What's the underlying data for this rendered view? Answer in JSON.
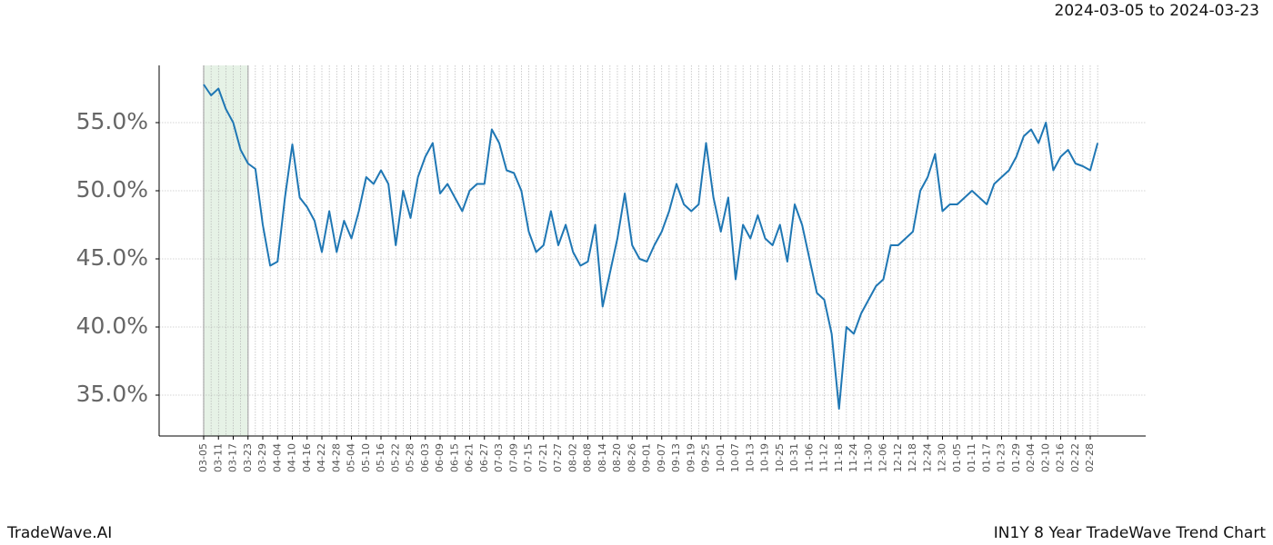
{
  "chart_data": {
    "type": "line",
    "title": "2024-03-05 to 2024-03-23",
    "footer_left": "TradeWave.AI",
    "footer_right": "IN1Y 8 Year TradeWave Trend Chart",
    "categories": [
      "03-05",
      null,
      "03-11",
      null,
      "03-17",
      null,
      "03-23",
      null,
      "03-29",
      null,
      "04-04",
      null,
      "04-10",
      null,
      "04-16",
      null,
      "04-22",
      null,
      "04-28",
      null,
      "05-04",
      null,
      "05-10",
      null,
      "05-16",
      null,
      "05-22",
      null,
      "05-28",
      null,
      "06-03",
      null,
      "06-09",
      null,
      "06-15",
      null,
      "06-21",
      null,
      "06-27",
      null,
      "07-03",
      null,
      "07-09",
      null,
      "07-15",
      null,
      "07-21",
      null,
      "07-27",
      null,
      "08-02",
      null,
      "08-08",
      null,
      "08-14",
      null,
      "08-20",
      null,
      "08-26",
      null,
      "09-01",
      null,
      "09-07",
      null,
      "09-13",
      null,
      "09-19",
      null,
      "09-25",
      null,
      "10-01",
      null,
      "10-07",
      null,
      "10-13",
      null,
      "10-19",
      null,
      "10-25",
      null,
      "10-31",
      null,
      "11-06",
      null,
      "11-12",
      null,
      "11-18",
      null,
      "11-24",
      null,
      "11-30",
      null,
      "12-06",
      null,
      "12-12",
      null,
      "12-18",
      null,
      "12-24",
      null,
      "12-30",
      null,
      "01-05",
      null,
      "01-11",
      null,
      "01-17",
      null,
      "01-23",
      null,
      "01-29",
      null,
      "02-04",
      null,
      "02-10",
      null,
      "02-16",
      null,
      "02-22",
      null,
      "02-28",
      null
    ],
    "series": [
      {
        "name": "IN1Y",
        "color": "#1f77b4",
        "values": [
          57.8,
          57.0,
          57.5,
          56.0,
          55.0,
          53.0,
          52.0,
          51.6,
          47.5,
          44.5,
          44.8,
          49.5,
          53.4,
          49.5,
          48.8,
          47.8,
          45.5,
          48.5,
          45.5,
          47.8,
          46.5,
          48.5,
          51.0,
          50.5,
          51.5,
          50.5,
          46.0,
          50.0,
          48.0,
          51.0,
          52.5,
          53.5,
          49.8,
          50.5,
          49.5,
          48.5,
          50.0,
          50.5,
          50.5,
          54.5,
          53.5,
          51.5,
          51.3,
          50.0,
          47.0,
          45.5,
          46.0,
          48.5,
          46.0,
          47.5,
          45.5,
          44.5,
          44.8,
          47.5,
          41.5,
          44.0,
          46.5,
          49.8,
          46.0,
          45.0,
          44.8,
          46.0,
          47.0,
          48.5,
          50.5,
          49.0,
          48.5,
          49.0,
          53.5,
          49.5,
          47.0,
          49.5,
          43.5,
          47.5,
          46.5,
          48.2,
          46.5,
          46.0,
          47.5,
          44.8,
          49.0,
          47.5,
          45.0,
          42.5,
          42.0,
          39.5,
          34.0,
          40.0,
          39.5,
          41.0,
          42.0,
          43.0,
          43.5,
          46.0,
          46.0,
          46.5,
          47.0,
          50.0,
          51.0,
          52.7,
          48.5,
          49.0,
          49.0,
          49.5,
          50.0,
          49.5,
          49.0,
          50.5,
          51.0,
          51.5,
          52.5,
          54.0,
          54.5,
          53.5,
          55.0,
          51.5,
          52.5,
          53.0,
          52.0,
          51.8,
          51.5,
          53.5
        ]
      }
    ],
    "highlight": [
      "03-05",
      "03-23"
    ],
    "highlight_color": "#e6f2e6",
    "ylim": [
      32,
      59.2
    ],
    "yticks": [
      {
        "value": 35,
        "label": "35.0%"
      },
      {
        "value": 40,
        "label": "40.0%"
      },
      {
        "value": 45,
        "label": "45.0%"
      },
      {
        "value": 50,
        "label": "50.0%"
      },
      {
        "value": 55,
        "label": "55.0%"
      }
    ],
    "grid": true
  }
}
